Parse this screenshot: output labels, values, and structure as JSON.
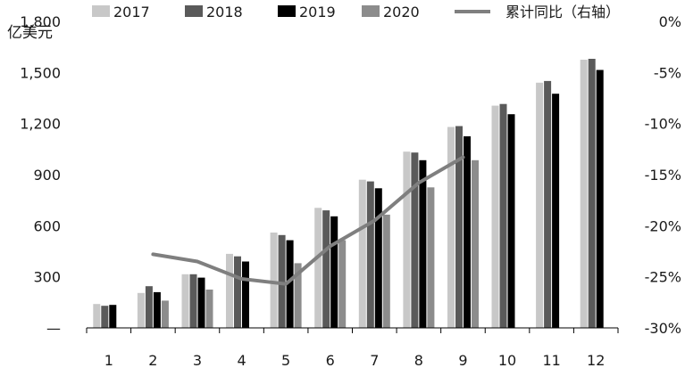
{
  "chart_data": {
    "type": "bar",
    "ylabel": "亿美元",
    "categories": [
      "1",
      "2",
      "3",
      "4",
      "5",
      "6",
      "7",
      "8",
      "9",
      "10",
      "11",
      "12"
    ],
    "y_ticks": [
      "—",
      "300",
      "600",
      "900",
      "1,200",
      "1,500",
      "1,800"
    ],
    "y2_ticks": [
      "-30%",
      "-25%",
      "-20%",
      "-15%",
      "-10%",
      "-5%",
      "0%"
    ],
    "ylim": [
      0,
      1800
    ],
    "y2lim": [
      -30,
      0
    ],
    "legend_position": "top",
    "series": [
      {
        "name": "2017",
        "color": "#c8c8c8",
        "values": [
          140,
          205,
          315,
          435,
          560,
          705,
          870,
          1035,
          1180,
          1305,
          1440,
          1575
        ]
      },
      {
        "name": "2018",
        "color": "#5a5a5a",
        "values": [
          130,
          245,
          315,
          420,
          545,
          690,
          860,
          1030,
          1185,
          1315,
          1450,
          1580
        ]
      },
      {
        "name": "2019",
        "color": "#000000",
        "values": [
          135,
          210,
          295,
          390,
          515,
          655,
          820,
          985,
          1125,
          1255,
          1375,
          1515
        ]
      },
      {
        "name": "2020",
        "color": "#8c8c8c",
        "values": [
          null,
          160,
          225,
          null,
          380,
          515,
          665,
          825,
          985,
          null,
          null,
          null
        ]
      }
    ],
    "line": {
      "name": "累计同比（右轴）",
      "color": "#7f7f7f",
      "axis": "right",
      "values": [
        null,
        -22.8,
        -23.5,
        -25.2,
        -25.7,
        -22.0,
        -19.5,
        -15.8,
        -13.3,
        null,
        null,
        null
      ]
    }
  }
}
